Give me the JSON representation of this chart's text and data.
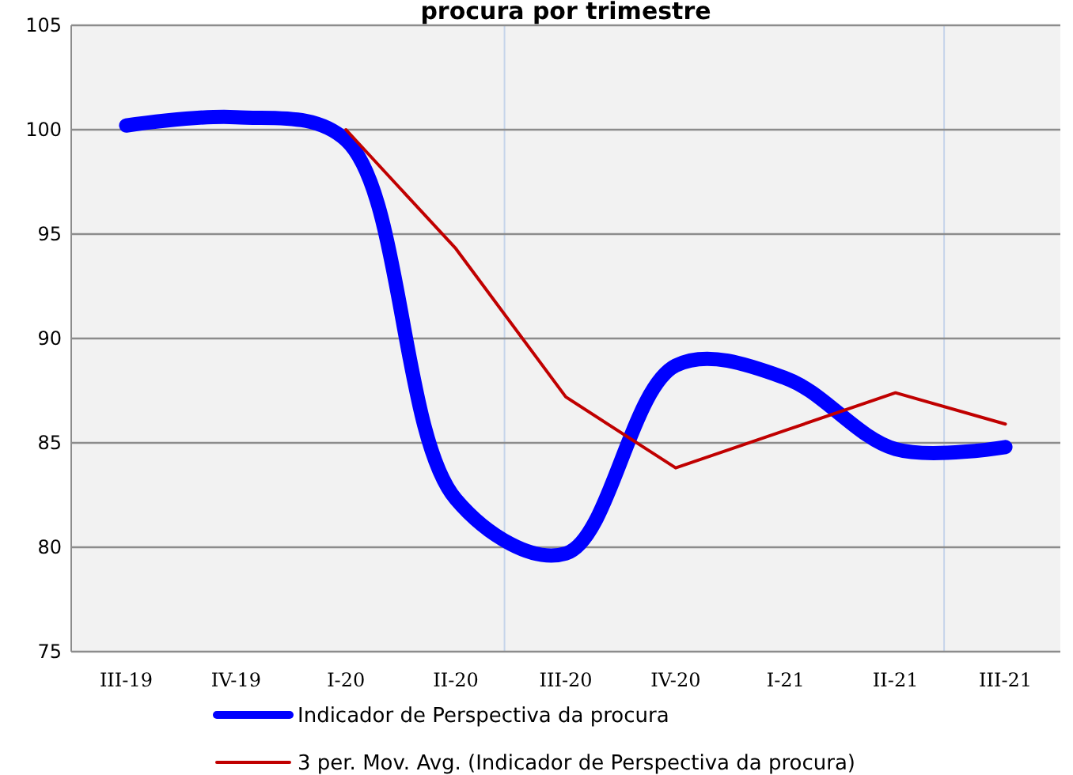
{
  "chart_data": {
    "type": "line",
    "title": "procura por trimestre",
    "categories": [
      "III-19",
      "IV-19",
      "I-20",
      "II-20",
      "III-20",
      "IV-20",
      "I-21",
      "II-21",
      "III-21"
    ],
    "series": [
      {
        "name": "Indicador de Perspectiva da procura",
        "color": "#0000ff",
        "values": [
          100.2,
          100.6,
          99.5,
          82.3,
          79.7,
          88.7,
          88.1,
          84.7,
          84.8
        ]
      },
      {
        "name": "3 per. Mov. Avg. (Indicador de Perspectiva da procura)",
        "color": "#c00000",
        "values": [
          null,
          null,
          100,
          94.3,
          87.2,
          83.8,
          85.6,
          87.4,
          85.9
        ]
      }
    ],
    "ylim": [
      75,
      105
    ],
    "yticks": [
      75,
      80,
      85,
      90,
      95,
      100,
      105
    ],
    "grid": true,
    "legend": "bottom",
    "marker": "none"
  }
}
